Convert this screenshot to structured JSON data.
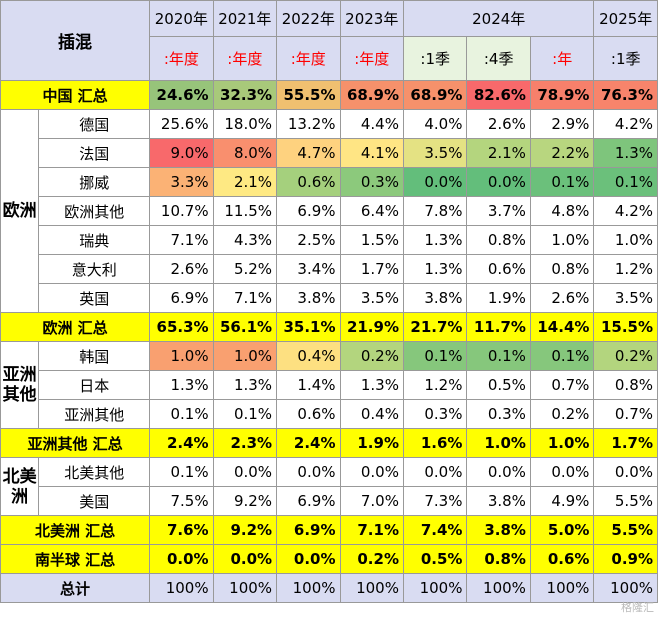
{
  "header": {
    "corner": "插混",
    "years": [
      "2020年",
      "2021年",
      "2022年",
      "2023年",
      "2024年",
      "2025年"
    ],
    "periods": [
      ":年度",
      ":年度",
      ":年度",
      ":年度",
      ":1季",
      ":4季",
      ":年",
      ":1季"
    ]
  },
  "china": {
    "label": "中国 汇总",
    "values": [
      "24.6%",
      "32.3%",
      "55.5%",
      "68.9%",
      "68.9%",
      "82.6%",
      "78.9%",
      "76.3%"
    ],
    "colors": [
      "#97c47a",
      "#a8c97a",
      "#f0c070",
      "#f6916b",
      "#f6916b",
      "#f8696b",
      "#f7806b",
      "#f7846b"
    ]
  },
  "europe": {
    "region": "欧洲",
    "rows": [
      {
        "name": "德国",
        "values": [
          "25.6%",
          "18.0%",
          "13.2%",
          "4.4%",
          "4.0%",
          "2.6%",
          "2.9%",
          "4.2%"
        ],
        "colors": [
          "#ffffff",
          "#ffffff",
          "#ffffff",
          "#ffffff",
          "#ffffff",
          "#ffffff",
          "#ffffff",
          "#ffffff"
        ]
      },
      {
        "name": "法国",
        "values": [
          "9.0%",
          "8.0%",
          "4.7%",
          "4.1%",
          "3.5%",
          "2.1%",
          "2.2%",
          "1.3%"
        ],
        "colors": [
          "#f8696b",
          "#f98f6e",
          "#fed27f",
          "#ffe584",
          "#e4e283",
          "#b4d57e",
          "#b8d67f",
          "#7ec57c"
        ]
      },
      {
        "name": "挪威",
        "values": [
          "3.3%",
          "2.1%",
          "0.6%",
          "0.3%",
          "0.0%",
          "0.0%",
          "0.1%",
          "0.1%"
        ],
        "colors": [
          "#fbb275",
          "#fee983",
          "#a5d07d",
          "#8cc97c",
          "#63be7b",
          "#63be7b",
          "#6bc07b",
          "#6bc07b"
        ]
      },
      {
        "name": "欧洲其他",
        "values": [
          "10.7%",
          "11.5%",
          "6.9%",
          "6.4%",
          "7.8%",
          "3.7%",
          "4.8%",
          "4.2%"
        ],
        "colors": [
          "#ffffff",
          "#ffffff",
          "#ffffff",
          "#ffffff",
          "#ffffff",
          "#ffffff",
          "#ffffff",
          "#ffffff"
        ]
      },
      {
        "name": "瑞典",
        "values": [
          "7.1%",
          "4.3%",
          "2.5%",
          "1.5%",
          "1.3%",
          "0.8%",
          "1.0%",
          "1.0%"
        ],
        "colors": [
          "#ffffff",
          "#ffffff",
          "#ffffff",
          "#ffffff",
          "#ffffff",
          "#ffffff",
          "#ffffff",
          "#ffffff"
        ]
      },
      {
        "name": "意大利",
        "values": [
          "2.6%",
          "5.2%",
          "3.4%",
          "1.7%",
          "1.3%",
          "0.6%",
          "0.8%",
          "1.2%"
        ],
        "colors": [
          "#ffffff",
          "#ffffff",
          "#ffffff",
          "#ffffff",
          "#ffffff",
          "#ffffff",
          "#ffffff",
          "#ffffff"
        ]
      },
      {
        "name": "英国",
        "values": [
          "6.9%",
          "7.1%",
          "3.8%",
          "3.5%",
          "3.8%",
          "1.9%",
          "2.6%",
          "3.5%"
        ],
        "colors": [
          "#ffffff",
          "#ffffff",
          "#ffffff",
          "#ffffff",
          "#ffffff",
          "#ffffff",
          "#ffffff",
          "#ffffff"
        ]
      }
    ],
    "subtotal": {
      "label": "欧洲 汇总",
      "values": [
        "65.3%",
        "56.1%",
        "35.1%",
        "21.9%",
        "21.7%",
        "11.7%",
        "14.4%",
        "15.5%"
      ]
    }
  },
  "asia": {
    "region": "亚洲其他",
    "rows": [
      {
        "name": "韩国",
        "values": [
          "1.0%",
          "1.0%",
          "0.4%",
          "0.2%",
          "0.1%",
          "0.1%",
          "0.1%",
          "0.2%"
        ],
        "colors": [
          "#f9a070",
          "#f9a070",
          "#fde081",
          "#b3d57e",
          "#86c77c",
          "#86c77c",
          "#86c77c",
          "#b3d57e"
        ]
      },
      {
        "name": "日本",
        "values": [
          "1.3%",
          "1.3%",
          "1.4%",
          "1.3%",
          "1.2%",
          "0.5%",
          "0.7%",
          "0.8%"
        ],
        "colors": [
          "#ffffff",
          "#ffffff",
          "#ffffff",
          "#ffffff",
          "#ffffff",
          "#ffffff",
          "#ffffff",
          "#ffffff"
        ]
      },
      {
        "name": "亚洲其他",
        "values": [
          "0.1%",
          "0.1%",
          "0.6%",
          "0.4%",
          "0.3%",
          "0.3%",
          "0.2%",
          "0.7%"
        ],
        "colors": [
          "#ffffff",
          "#ffffff",
          "#ffffff",
          "#ffffff",
          "#ffffff",
          "#ffffff",
          "#ffffff",
          "#ffffff"
        ]
      }
    ],
    "subtotal": {
      "label": "亚洲其他 汇总",
      "values": [
        "2.4%",
        "2.3%",
        "2.4%",
        "1.9%",
        "1.6%",
        "1.0%",
        "1.0%",
        "1.7%"
      ]
    }
  },
  "namerica": {
    "region": "北美洲",
    "rows": [
      {
        "name": "北美其他",
        "values": [
          "0.1%",
          "0.0%",
          "0.0%",
          "0.0%",
          "0.0%",
          "0.0%",
          "0.0%",
          "0.0%"
        ],
        "colors": [
          "#ffffff",
          "#ffffff",
          "#ffffff",
          "#ffffff",
          "#ffffff",
          "#ffffff",
          "#ffffff",
          "#ffffff"
        ]
      },
      {
        "name": "美国",
        "values": [
          "7.5%",
          "9.2%",
          "6.9%",
          "7.0%",
          "7.3%",
          "3.8%",
          "4.9%",
          "5.5%"
        ],
        "colors": [
          "#ffffff",
          "#ffffff",
          "#ffffff",
          "#ffffff",
          "#ffffff",
          "#ffffff",
          "#ffffff",
          "#ffffff"
        ]
      }
    ],
    "subtotal": {
      "label": "北美洲 汇总",
      "values": [
        "7.6%",
        "9.2%",
        "6.9%",
        "7.1%",
        "7.4%",
        "3.8%",
        "5.0%",
        "5.5%"
      ]
    }
  },
  "south": {
    "label": "南半球 汇总",
    "values": [
      "0.0%",
      "0.0%",
      "0.0%",
      "0.2%",
      "0.5%",
      "0.8%",
      "0.6%",
      "0.9%"
    ]
  },
  "total": {
    "label": "总计",
    "values": [
      "100%",
      "100%",
      "100%",
      "100%",
      "100%",
      "100%",
      "100%",
      "100%"
    ]
  },
  "watermark": "格隆汇"
}
